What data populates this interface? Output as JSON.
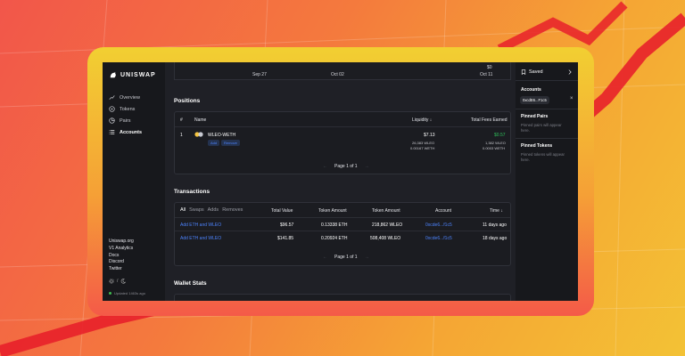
{
  "brand": {
    "name": "UNISWAP"
  },
  "nav": [
    {
      "label": "Overview",
      "icon": "trending-up-icon",
      "active": false
    },
    {
      "label": "Tokens",
      "icon": "disc-icon",
      "active": false
    },
    {
      "label": "Pairs",
      "icon": "pie-chart-icon",
      "active": false
    },
    {
      "label": "Accounts",
      "icon": "list-icon",
      "active": true
    }
  ],
  "side_links": [
    "Uniswap.org",
    "V1 Analytics",
    "Docs",
    "Discord",
    "Twitter"
  ],
  "side_toggle": {
    "separator": "/"
  },
  "updated": "Updated 1463s ago",
  "chart_strip": {
    "zero_label": "$0",
    "ticks": [
      "Sep 27",
      "Oct 02",
      "Oct 11"
    ]
  },
  "positions": {
    "title": "Positions",
    "headers": {
      "num": "#",
      "name": "Name",
      "liquidity": "Liquidity ↓",
      "fees": "Total Fees Earned"
    },
    "rows": [
      {
        "num": "1",
        "name": "WLEO-WETH",
        "add": "Add",
        "remove": "Remove",
        "liquidity": "$7.13",
        "liq_token_a": "26,383 WLEO",
        "liq_token_b": "0.00167 WETH",
        "fees": "$0.57",
        "fee_token_a": "1,382 WLEO",
        "fee_token_b": "0.0003 WETH"
      }
    ],
    "pager": {
      "prev": "←",
      "label": "Page 1 of 1",
      "next": "→"
    }
  },
  "transactions": {
    "title": "Transactions",
    "filters": [
      "All",
      "Swaps",
      "Adds",
      "Removes"
    ],
    "headers": {
      "total": "Total Value",
      "token_a": "Token Amount",
      "token_b": "Token Amount",
      "account": "Account",
      "time": "Time ↓"
    },
    "rows": [
      {
        "action": "Add ETH and WLEO",
        "total": "$96.57",
        "token_a": "0.13338 ETH",
        "token_b": "218,862 WLEO",
        "account": "0xcde6...f1c5",
        "time": "11 days ago"
      },
      {
        "action": "Add ETH and WLEO",
        "total": "$141.85",
        "token_a": "0.20924 ETH",
        "token_b": "508,408 WLEO",
        "account": "0xcde6...f1c5",
        "time": "18 days ago"
      }
    ],
    "pager": {
      "prev": "←",
      "label": "Page 1 of 1",
      "next": "→"
    }
  },
  "wallet_stats": {
    "title": "Wallet Stats"
  },
  "right": {
    "saved": "Saved",
    "accounts_title": "Accounts",
    "account_chip": "0xcdE6...F1c5",
    "pinned_pairs_title": "Pinned Pairs",
    "pinned_pairs_text": "Pinned pairs will appear here.",
    "pinned_tokens_title": "Pinned Tokens",
    "pinned_tokens_text": "Pinned tokens will appear here."
  },
  "colors": {
    "accent": "#4c82fb",
    "positive": "#2fbf5a",
    "screen_bg": "#1f2026"
  }
}
